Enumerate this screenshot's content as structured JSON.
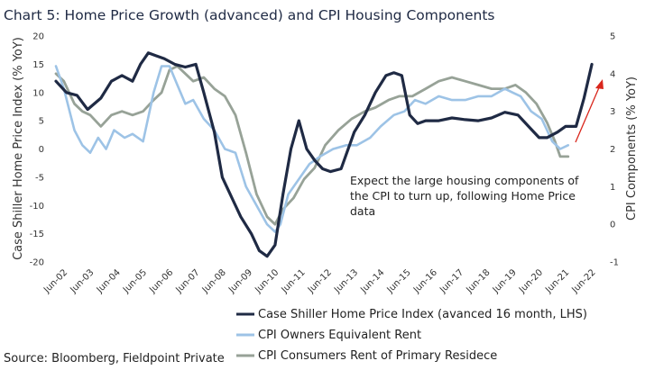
{
  "chart_data": {
    "type": "line",
    "title": "Chart 5: Home Price Growth (advanced) and CPI Housing Components",
    "ylabel_left": "Case Shiller Home Price Index (% YoY)",
    "ylabel_right": "CPI Components (% YoY)",
    "y_left_range": [
      -20,
      20
    ],
    "y_right_range": [
      -1,
      5
    ],
    "y_left_ticks": [
      "-20",
      "-15",
      "-10",
      "-5",
      "0",
      "5",
      "10",
      "15",
      "20"
    ],
    "y_right_ticks": [
      "-1",
      "0",
      "1",
      "2",
      "3",
      "4",
      "5"
    ],
    "x_range": [
      2002.0,
      2022.5
    ],
    "x_ticks": [
      "Jun-02",
      "Jun-03",
      "Jun-04",
      "Jun-05",
      "Jun-06",
      "Jun-07",
      "Jun-08",
      "Jun-09",
      "Jun-10",
      "Jun-11",
      "Jun-12",
      "Jun-13",
      "Jun-14",
      "Jun-15",
      "Jun-16",
      "Jun-17",
      "Jun-18",
      "Jun-19",
      "Jun-20",
      "Jun-21",
      "Jun-22"
    ],
    "grid": false,
    "legend_position": "bottom-right",
    "annotation": [
      "Expect the large housing components of",
      "the CPI to turn up, following Home Price",
      "data"
    ],
    "source": "Source: Bloomberg, Fieldpoint Private",
    "series": [
      {
        "name": "Case Shiller Home Price Index (avanced 16 month, LHS)",
        "axis": "left",
        "color": "#1f2a44",
        "x": [
          2002.0,
          2002.4,
          2002.8,
          2003.2,
          2003.7,
          2004.1,
          2004.5,
          2004.9,
          2005.2,
          2005.5,
          2005.8,
          2006.1,
          2006.5,
          2006.9,
          2007.3,
          2007.6,
          2008.0,
          2008.3,
          2008.7,
          2009.0,
          2009.4,
          2009.7,
          2010.0,
          2010.3,
          2010.6,
          2010.9,
          2011.2,
          2011.5,
          2011.8,
          2012.1,
          2012.4,
          2012.8,
          2013.3,
          2013.7,
          2014.1,
          2014.5,
          2014.8,
          2015.1,
          2015.4,
          2015.7,
          2016.0,
          2016.5,
          2017.0,
          2017.5,
          2018.0,
          2018.5,
          2019.0,
          2019.5,
          2020.0,
          2020.3,
          2020.6,
          2021.0,
          2021.3,
          2021.7,
          2022.0,
          2022.3
        ],
        "values": [
          12,
          10,
          9.5,
          7,
          9,
          12,
          13,
          12,
          15,
          17,
          16.5,
          16,
          15,
          14.5,
          15,
          10,
          3,
          -5,
          -9,
          -12,
          -15,
          -18,
          -19,
          -17,
          -8,
          0,
          5,
          0,
          -2,
          -3.5,
          -4,
          -3.5,
          3,
          6,
          10,
          13,
          13.5,
          13,
          6,
          4.5,
          5,
          5,
          5.5,
          5.2,
          5,
          5.5,
          6.5,
          6,
          3.5,
          2,
          2,
          3,
          4,
          4,
          9,
          15
        ]
      },
      {
        "name": "CPI Owners Equivalent Rent",
        "axis": "right",
        "color": "#9dc3e6",
        "x": [
          2002.0,
          2002.3,
          2002.7,
          2003.0,
          2003.3,
          2003.6,
          2003.9,
          2004.2,
          2004.6,
          2004.9,
          2005.3,
          2005.7,
          2006.0,
          2006.3,
          2006.6,
          2006.9,
          2007.2,
          2007.6,
          2008.0,
          2008.4,
          2008.8,
          2009.2,
          2009.6,
          2010.0,
          2010.3,
          2010.5,
          2010.8,
          2011.2,
          2011.6,
          2012.0,
          2012.5,
          2013.0,
          2013.4,
          2013.9,
          2014.3,
          2014.8,
          2015.2,
          2015.6,
          2016.0,
          2016.5,
          2017.0,
          2017.5,
          2018.0,
          2018.5,
          2019.0,
          2019.3,
          2019.6,
          2020.0,
          2020.4,
          2020.8,
          2021.1,
          2021.4
        ],
        "values": [
          4.2,
          3.6,
          2.5,
          2.1,
          1.9,
          2.3,
          2.0,
          2.5,
          2.3,
          2.4,
          2.2,
          3.5,
          4.2,
          4.2,
          3.7,
          3.2,
          3.3,
          2.8,
          2.5,
          2.0,
          1.9,
          1.0,
          0.5,
          0.0,
          -0.2,
          0.0,
          0.8,
          1.2,
          1.6,
          1.8,
          2.0,
          2.1,
          2.1,
          2.3,
          2.6,
          2.9,
          3.0,
          3.3,
          3.2,
          3.4,
          3.3,
          3.3,
          3.4,
          3.4,
          3.6,
          3.5,
          3.4,
          3.0,
          2.8,
          2.2,
          2.0,
          2.1
        ]
      },
      {
        "name": "CPI Consumers Rent of Primary Residece",
        "axis": "right",
        "color": "#97a297",
        "x": [
          2002.0,
          2002.3,
          2002.7,
          2003.0,
          2003.3,
          2003.7,
          2004.1,
          2004.5,
          2004.9,
          2005.3,
          2005.7,
          2006.0,
          2006.3,
          2006.6,
          2006.9,
          2007.2,
          2007.6,
          2008.0,
          2008.4,
          2008.8,
          2009.2,
          2009.6,
          2010.0,
          2010.3,
          2010.6,
          2011.0,
          2011.4,
          2011.8,
          2012.2,
          2012.7,
          2013.2,
          2013.7,
          2014.1,
          2014.6,
          2015.0,
          2015.5,
          2016.0,
          2016.5,
          2017.0,
          2017.5,
          2018.0,
          2018.5,
          2019.0,
          2019.4,
          2019.8,
          2020.2,
          2020.6,
          2020.9,
          2021.1,
          2021.4
        ],
        "values": [
          4.0,
          3.8,
          3.2,
          3.0,
          2.9,
          2.6,
          2.9,
          3.0,
          2.9,
          3.0,
          3.3,
          3.5,
          4.1,
          4.2,
          4.0,
          3.8,
          3.9,
          3.6,
          3.4,
          2.9,
          1.9,
          0.8,
          0.2,
          0.0,
          0.4,
          0.7,
          1.2,
          1.5,
          2.1,
          2.5,
          2.8,
          3.0,
          3.1,
          3.3,
          3.4,
          3.4,
          3.6,
          3.8,
          3.9,
          3.8,
          3.7,
          3.6,
          3.6,
          3.7,
          3.5,
          3.2,
          2.7,
          2.2,
          1.8,
          1.8
        ]
      }
    ]
  }
}
